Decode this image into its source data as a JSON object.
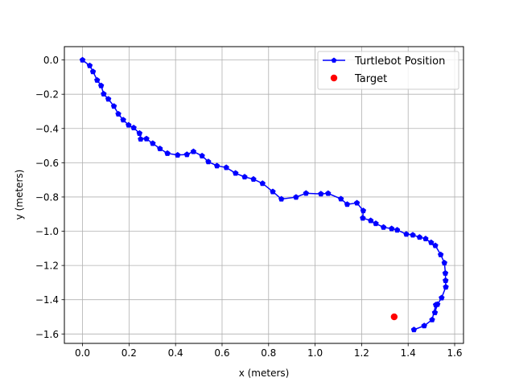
{
  "chart_data": {
    "type": "line",
    "xlabel": "x (meters)",
    "ylabel": "y (meters)",
    "xlim": [
      -0.078,
      1.638
    ],
    "ylim": [
      -1.655,
      0.078
    ],
    "xticks": [
      0.0,
      0.2,
      0.4,
      0.6,
      0.8,
      1.0,
      1.2,
      1.4,
      1.6
    ],
    "xtick_labels": [
      "0.0",
      "0.2",
      "0.4",
      "0.6",
      "0.8",
      "1.0",
      "1.2",
      "1.4",
      "1.6"
    ],
    "yticks": [
      0.0,
      -0.2,
      -0.4,
      -0.6,
      -0.8,
      -1.0,
      -1.2,
      -1.4,
      -1.6
    ],
    "ytick_labels": [
      "0.0",
      "−0.2",
      "−0.4",
      "−0.6",
      "−0.8",
      "−1.0",
      "−1.2",
      "−1.4",
      "−1.6"
    ],
    "grid": true,
    "legend_position": "top-right",
    "series": [
      {
        "name": "Turtlebot Position",
        "color": "#0000ff",
        "marker": "pentagon",
        "x": [
          0.0,
          0.031,
          0.045,
          0.063,
          0.08,
          0.091,
          0.111,
          0.135,
          0.154,
          0.175,
          0.198,
          0.22,
          0.245,
          0.25,
          0.275,
          0.302,
          0.333,
          0.365,
          0.409,
          0.449,
          0.477,
          0.514,
          0.541,
          0.578,
          0.618,
          0.658,
          0.697,
          0.735,
          0.774,
          0.818,
          0.855,
          0.918,
          0.961,
          1.025,
          1.056,
          1.111,
          1.138,
          1.18,
          1.207,
          1.205,
          1.239,
          1.261,
          1.294,
          1.329,
          1.353,
          1.392,
          1.42,
          1.449,
          1.475,
          1.499,
          1.517,
          1.54,
          1.556,
          1.56,
          1.561,
          1.562,
          1.544,
          1.526,
          1.515,
          1.519,
          1.503,
          1.469,
          1.425
        ],
        "y": [
          0.0,
          -0.033,
          -0.068,
          -0.118,
          -0.15,
          -0.198,
          -0.228,
          -0.27,
          -0.315,
          -0.35,
          -0.38,
          -0.396,
          -0.428,
          -0.462,
          -0.46,
          -0.487,
          -0.518,
          -0.545,
          -0.555,
          -0.552,
          -0.535,
          -0.56,
          -0.594,
          -0.618,
          -0.628,
          -0.661,
          -0.683,
          -0.696,
          -0.721,
          -0.769,
          -0.812,
          -0.801,
          -0.778,
          -0.782,
          -0.779,
          -0.811,
          -0.843,
          -0.835,
          -0.88,
          -0.923,
          -0.938,
          -0.955,
          -0.977,
          -0.985,
          -0.993,
          -1.017,
          -1.022,
          -1.035,
          -1.044,
          -1.066,
          -1.084,
          -1.137,
          -1.185,
          -1.245,
          -1.288,
          -1.326,
          -1.389,
          -1.427,
          -1.475,
          -1.43,
          -1.517,
          -1.552,
          -1.575
        ]
      },
      {
        "name": "Target",
        "color": "#ff0000",
        "marker": "circle",
        "x": [
          1.34
        ],
        "y": [
          -1.5
        ]
      }
    ]
  }
}
